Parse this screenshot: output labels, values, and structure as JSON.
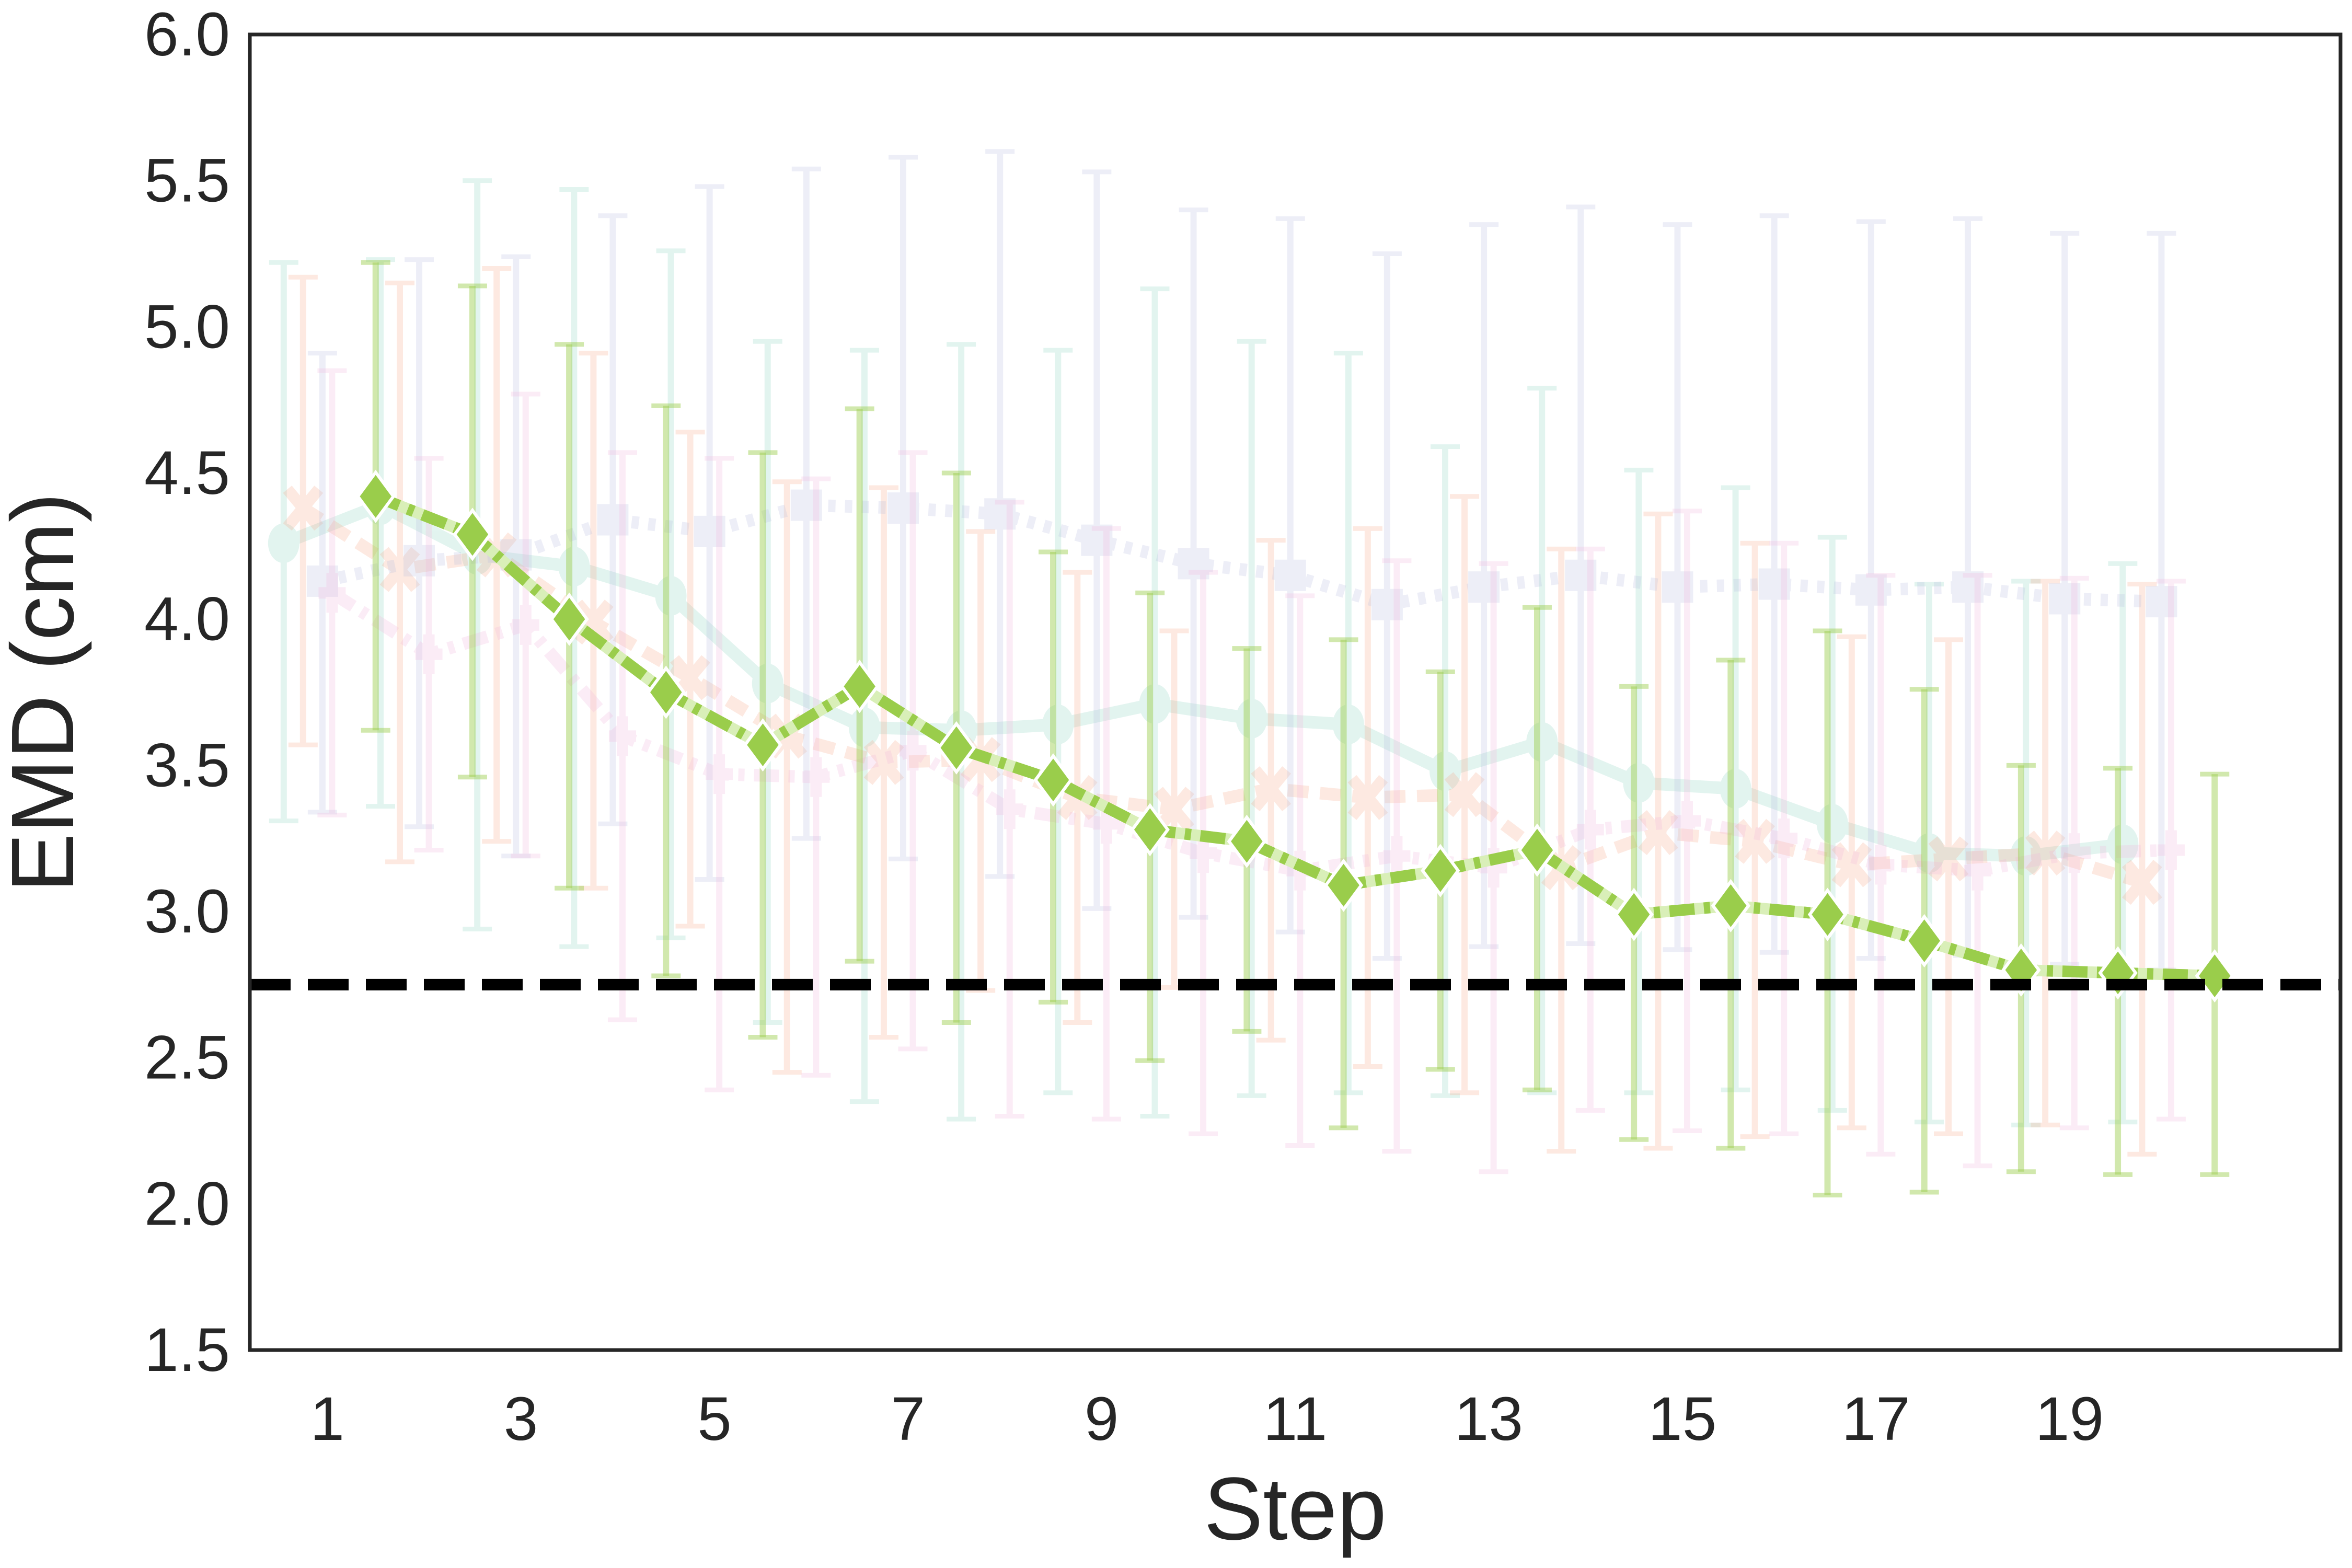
{
  "chart_data": {
    "type": "line",
    "title": "",
    "xlabel": "Step",
    "ylabel": "EMD (cm)",
    "ylim": [
      1.5,
      6.0
    ],
    "xlim": [
      0.2,
      21.8
    ],
    "yticks": [
      "1.5",
      "2.0",
      "2.5",
      "3.0",
      "3.5",
      "4.0",
      "4.5",
      "5.0",
      "5.5",
      "6.0"
    ],
    "xticks": [
      "1",
      "3",
      "5",
      "7",
      "9",
      "11",
      "13",
      "15",
      "17",
      "19"
    ],
    "grid": false,
    "legend": null,
    "x": [
      1,
      2,
      3,
      4,
      5,
      6,
      7,
      8,
      9,
      10,
      11,
      12,
      13,
      14,
      15,
      16,
      17,
      18,
      19,
      20
    ],
    "reference_line": {
      "y": 2.75,
      "style": "dashed",
      "color": "#000000"
    },
    "series": [
      {
        "name": "series-teal-circle",
        "color": "#8fd6c2",
        "marker": "circle",
        "linestyle": "solid",
        "opacity": 0.25,
        "offset": -0.45,
        "values": [
          4.26,
          4.39,
          4.22,
          4.18,
          4.08,
          3.78,
          3.63,
          3.62,
          3.64,
          3.71,
          3.66,
          3.64,
          3.48,
          3.58,
          3.44,
          3.42,
          3.3,
          3.2,
          3.19,
          3.23
        ],
        "err_upper": [
          5.22,
          5.23,
          5.5,
          5.47,
          5.26,
          4.95,
          4.92,
          4.94,
          4.92,
          5.13,
          4.95,
          4.91,
          4.59,
          4.79,
          4.51,
          4.45,
          4.28,
          4.12,
          4.13,
          4.19
        ],
        "err_lower": [
          3.31,
          3.36,
          2.94,
          2.88,
          2.91,
          2.62,
          2.35,
          2.29,
          2.38,
          2.3,
          2.37,
          2.38,
          2.37,
          2.38,
          2.38,
          2.39,
          2.32,
          2.28,
          2.27,
          2.28
        ]
      },
      {
        "name": "series-orange-x",
        "color": "#f8a98a",
        "marker": "x",
        "linestyle": "dashed",
        "opacity": 0.25,
        "offset": -0.25,
        "values": [
          4.38,
          4.17,
          4.22,
          3.99,
          3.8,
          3.6,
          3.51,
          3.52,
          3.39,
          3.35,
          3.42,
          3.39,
          3.4,
          3.15,
          3.27,
          3.24,
          3.16,
          3.18,
          3.2,
          3.1
        ],
        "err_upper": [
          5.17,
          5.15,
          5.2,
          4.91,
          4.64,
          4.47,
          4.45,
          4.3,
          4.16,
          3.96,
          4.27,
          4.31,
          4.42,
          4.24,
          4.36,
          4.26,
          3.94,
          3.93,
          4.13,
          4.12
        ],
        "err_lower": [
          3.57,
          3.17,
          3.24,
          3.08,
          2.95,
          2.45,
          2.57,
          2.73,
          2.62,
          2.74,
          2.56,
          2.47,
          2.38,
          2.18,
          2.19,
          2.23,
          2.26,
          2.24,
          2.27,
          2.17
        ]
      },
      {
        "name": "series-lavender-square",
        "color": "#b9bfe0",
        "marker": "square",
        "linestyle": "dotted",
        "opacity": 0.25,
        "offset": -0.05,
        "values": [
          4.13,
          4.2,
          4.22,
          4.34,
          4.3,
          4.39,
          4.38,
          4.36,
          4.27,
          4.19,
          4.15,
          4.05,
          4.11,
          4.15,
          4.11,
          4.12,
          4.1,
          4.11,
          4.07,
          4.06
        ],
        "err_upper": [
          4.91,
          5.23,
          5.24,
          5.38,
          5.48,
          5.54,
          5.58,
          5.6,
          5.53,
          5.4,
          5.37,
          5.25,
          5.35,
          5.41,
          5.35,
          5.38,
          5.36,
          5.37,
          5.32,
          5.32
        ],
        "err_lower": [
          3.34,
          3.29,
          3.19,
          3.3,
          3.11,
          3.25,
          3.18,
          3.12,
          3.01,
          2.98,
          2.93,
          2.84,
          2.88,
          2.89,
          2.87,
          2.86,
          2.84,
          2.85,
          2.82,
          2.8
        ]
      },
      {
        "name": "series-pink",
        "color": "#f2b6dc",
        "marker": "plus",
        "linestyle": "dashdot",
        "opacity": 0.25,
        "offset": 0.05,
        "values": [
          4.09,
          3.88,
          3.98,
          3.6,
          3.47,
          3.46,
          3.55,
          3.35,
          3.3,
          3.2,
          3.14,
          3.19,
          3.15,
          3.28,
          3.31,
          3.25,
          3.16,
          3.14,
          3.2,
          3.21
        ],
        "err_upper": [
          4.85,
          4.55,
          4.77,
          4.57,
          4.55,
          4.48,
          4.57,
          4.4,
          4.31,
          4.16,
          4.08,
          4.2,
          4.19,
          4.24,
          4.37,
          4.26,
          4.15,
          4.15,
          4.14,
          4.13
        ],
        "err_lower": [
          3.33,
          3.21,
          3.19,
          2.63,
          2.39,
          2.44,
          2.53,
          2.3,
          2.29,
          2.24,
          2.2,
          2.18,
          2.11,
          2.32,
          2.25,
          2.24,
          2.17,
          2.13,
          2.26,
          2.29
        ]
      },
      {
        "name": "series-green-diamond",
        "color": "#9acd4b",
        "marker": "diamond",
        "linestyle": "dashdot",
        "opacity": 1.0,
        "highlighted": true,
        "offset": 0.5,
        "values": [
          4.42,
          4.29,
          4.0,
          3.75,
          3.57,
          3.77,
          3.56,
          3.45,
          3.28,
          3.24,
          3.09,
          3.14,
          3.21,
          2.99,
          3.02,
          2.99,
          2.9,
          2.8,
          2.79,
          2.78
        ],
        "err_upper": [
          5.22,
          5.14,
          4.94,
          4.73,
          4.57,
          4.72,
          4.5,
          4.23,
          4.09,
          3.9,
          3.93,
          3.82,
          4.04,
          3.77,
          3.86,
          3.96,
          3.76,
          3.5,
          3.49,
          3.47
        ],
        "err_lower": [
          3.62,
          3.46,
          3.08,
          2.78,
          2.57,
          2.83,
          2.62,
          2.69,
          2.49,
          2.59,
          2.26,
          2.46,
          2.39,
          2.22,
          2.19,
          2.03,
          2.04,
          2.11,
          2.1,
          2.1
        ]
      }
    ]
  },
  "axes": {
    "xlabel": "Step",
    "ylabel": "EMD (cm)"
  }
}
